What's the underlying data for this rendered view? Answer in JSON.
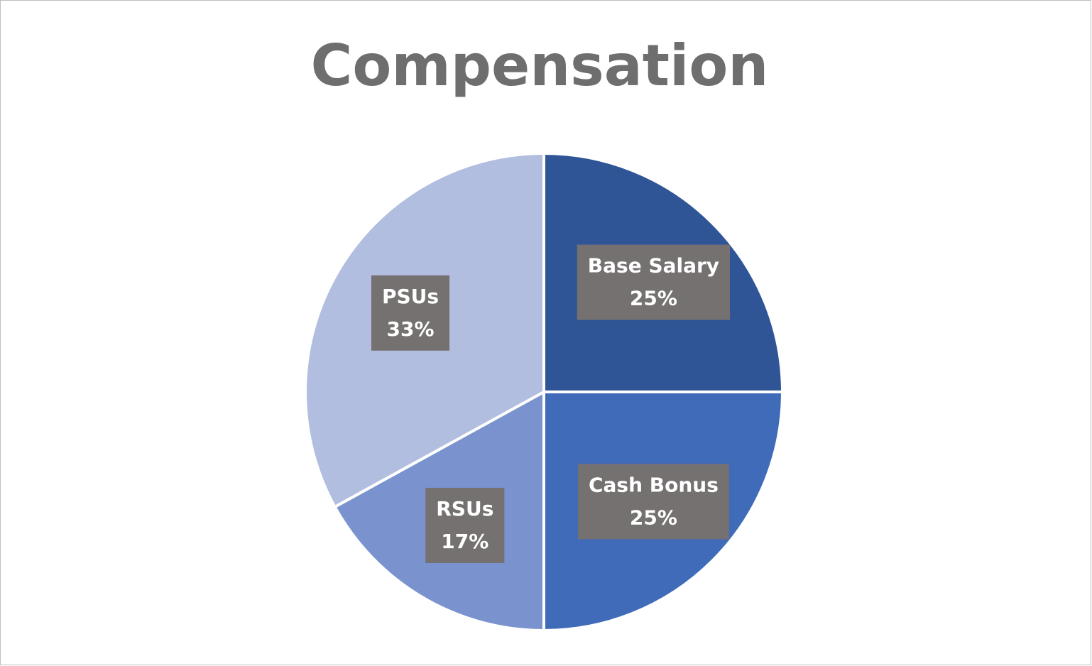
{
  "chart_data": {
    "type": "pie",
    "title": "Compensation",
    "categories": [
      "Base Salary",
      "Cash Bonus",
      "RSUs",
      "PSUs"
    ],
    "values": [
      25,
      25,
      17,
      33
    ],
    "value_labels": [
      "25%",
      "25%",
      "17%",
      "33%"
    ],
    "colors": [
      "#2f5597",
      "#3f6bb8",
      "#7a93cf",
      "#b2bedf"
    ]
  }
}
